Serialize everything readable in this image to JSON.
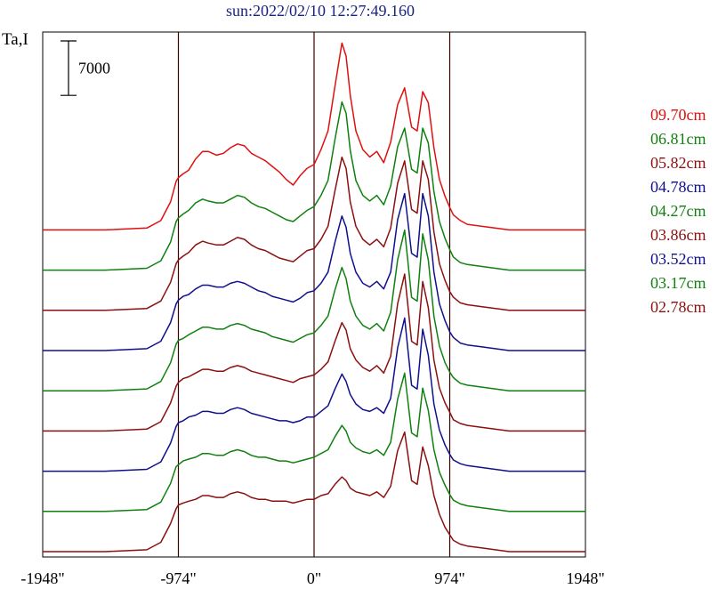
{
  "chart_data": {
    "type": "line",
    "title": "sun:2022/02/10 12:27:49.160",
    "ylabel": "Ta,I",
    "scale_bar_label": "7000",
    "xlim": [
      -1948,
      1948
    ],
    "x_ticks": [
      {
        "value": -1948,
        "label": "-1948\""
      },
      {
        "value": -974,
        "label": "-974\""
      },
      {
        "value": 0,
        "label": "0\""
      },
      {
        "value": 974,
        "label": "974\""
      },
      {
        "value": 1948,
        "label": "1948\""
      }
    ],
    "vertical_lines": [
      -974,
      0,
      974
    ],
    "grid": false,
    "legend_position": "right",
    "profile_x": [
      -1948,
      -1500,
      -1200,
      -1100,
      -1030,
      -990,
      -974,
      -940,
      -900,
      -850,
      -800,
      -760,
      -700,
      -650,
      -600,
      -550,
      -500,
      -450,
      -400,
      -350,
      -300,
      -250,
      -200,
      -150,
      -100,
      -50,
      0,
      50,
      100,
      150,
      200,
      230,
      260,
      300,
      350,
      400,
      450,
      500,
      550,
      600,
      650,
      700,
      740,
      780,
      820,
      860,
      900,
      940,
      974,
      1000,
      1050,
      1100,
      1200,
      1400,
      1948
    ],
    "series": [
      {
        "name": "09.70cm",
        "color": "#e01010",
        "offset": 0,
        "amplitude": 1.0,
        "values": [
          0.0,
          0.0,
          0.01,
          0.05,
          0.15,
          0.26,
          0.28,
          0.3,
          0.32,
          0.38,
          0.42,
          0.42,
          0.4,
          0.41,
          0.44,
          0.46,
          0.45,
          0.41,
          0.39,
          0.37,
          0.34,
          0.31,
          0.27,
          0.24,
          0.29,
          0.33,
          0.35,
          0.43,
          0.53,
          0.77,
          1.0,
          0.93,
          0.72,
          0.53,
          0.43,
          0.39,
          0.42,
          0.36,
          0.47,
          0.67,
          0.76,
          0.55,
          0.53,
          0.74,
          0.68,
          0.44,
          0.27,
          0.18,
          0.12,
          0.08,
          0.05,
          0.03,
          0.02,
          0.0,
          0.0
        ]
      },
      {
        "name": "06.81cm",
        "color": "#108010",
        "offset": 7000,
        "amplitude": 0.92,
        "values": [
          0.0,
          0.0,
          0.01,
          0.05,
          0.15,
          0.26,
          0.28,
          0.3,
          0.32,
          0.36,
          0.38,
          0.37,
          0.36,
          0.36,
          0.38,
          0.4,
          0.39,
          0.36,
          0.34,
          0.33,
          0.31,
          0.29,
          0.27,
          0.26,
          0.29,
          0.32,
          0.34,
          0.4,
          0.48,
          0.7,
          0.9,
          0.84,
          0.64,
          0.48,
          0.4,
          0.37,
          0.4,
          0.35,
          0.45,
          0.66,
          0.76,
          0.54,
          0.52,
          0.76,
          0.68,
          0.42,
          0.26,
          0.17,
          0.11,
          0.07,
          0.04,
          0.03,
          0.02,
          0.0,
          0.0
        ]
      },
      {
        "name": "05.82cm",
        "color": "#8b1010",
        "offset": 14000,
        "amplitude": 0.88,
        "values": [
          0.0,
          0.0,
          0.01,
          0.05,
          0.15,
          0.25,
          0.27,
          0.29,
          0.31,
          0.35,
          0.37,
          0.36,
          0.35,
          0.35,
          0.37,
          0.39,
          0.38,
          0.35,
          0.33,
          0.32,
          0.3,
          0.28,
          0.27,
          0.26,
          0.29,
          0.32,
          0.33,
          0.38,
          0.45,
          0.64,
          0.82,
          0.76,
          0.58,
          0.45,
          0.38,
          0.35,
          0.38,
          0.34,
          0.44,
          0.68,
          0.8,
          0.54,
          0.52,
          0.8,
          0.7,
          0.42,
          0.25,
          0.16,
          0.1,
          0.07,
          0.04,
          0.03,
          0.02,
          0.0,
          0.0
        ]
      },
      {
        "name": "04.78cm",
        "color": "#10108b",
        "offset": 21000,
        "amplitude": 0.86,
        "values": [
          0.0,
          0.0,
          0.01,
          0.05,
          0.15,
          0.25,
          0.27,
          0.29,
          0.3,
          0.33,
          0.35,
          0.35,
          0.34,
          0.34,
          0.36,
          0.37,
          0.36,
          0.34,
          0.32,
          0.31,
          0.29,
          0.28,
          0.27,
          0.26,
          0.28,
          0.31,
          0.32,
          0.36,
          0.42,
          0.58,
          0.72,
          0.66,
          0.52,
          0.42,
          0.36,
          0.34,
          0.37,
          0.33,
          0.42,
          0.7,
          0.84,
          0.52,
          0.5,
          0.84,
          0.72,
          0.42,
          0.25,
          0.16,
          0.1,
          0.07,
          0.04,
          0.03,
          0.02,
          0.0,
          0.0
        ]
      },
      {
        "name": "04.27cm",
        "color": "#108010",
        "offset": 28000,
        "amplitude": 0.84,
        "values": [
          0.0,
          0.0,
          0.01,
          0.05,
          0.15,
          0.25,
          0.27,
          0.28,
          0.3,
          0.32,
          0.34,
          0.34,
          0.33,
          0.33,
          0.35,
          0.36,
          0.35,
          0.33,
          0.32,
          0.31,
          0.29,
          0.28,
          0.27,
          0.26,
          0.28,
          0.3,
          0.31,
          0.35,
          0.4,
          0.54,
          0.66,
          0.6,
          0.48,
          0.4,
          0.35,
          0.33,
          0.36,
          0.32,
          0.42,
          0.7,
          0.86,
          0.5,
          0.48,
          0.84,
          0.7,
          0.4,
          0.24,
          0.15,
          0.1,
          0.07,
          0.04,
          0.03,
          0.02,
          0.0,
          0.0
        ]
      },
      {
        "name": "03.86cm",
        "color": "#8b1010",
        "offset": 35000,
        "amplitude": 0.82,
        "values": [
          0.0,
          0.0,
          0.01,
          0.05,
          0.15,
          0.24,
          0.26,
          0.28,
          0.29,
          0.31,
          0.33,
          0.33,
          0.32,
          0.32,
          0.34,
          0.35,
          0.34,
          0.32,
          0.31,
          0.3,
          0.29,
          0.28,
          0.27,
          0.26,
          0.28,
          0.29,
          0.3,
          0.33,
          0.37,
          0.48,
          0.58,
          0.54,
          0.44,
          0.38,
          0.34,
          0.32,
          0.35,
          0.31,
          0.4,
          0.68,
          0.84,
          0.48,
          0.46,
          0.8,
          0.66,
          0.38,
          0.23,
          0.15,
          0.1,
          0.06,
          0.04,
          0.03,
          0.02,
          0.0,
          0.0
        ]
      },
      {
        "name": "03.52cm",
        "color": "#10108b",
        "offset": 42000,
        "amplitude": 0.8,
        "values": [
          0.0,
          0.0,
          0.01,
          0.05,
          0.15,
          0.24,
          0.26,
          0.27,
          0.29,
          0.3,
          0.32,
          0.32,
          0.31,
          0.31,
          0.33,
          0.34,
          0.33,
          0.31,
          0.3,
          0.29,
          0.28,
          0.27,
          0.27,
          0.26,
          0.27,
          0.29,
          0.29,
          0.32,
          0.35,
          0.44,
          0.52,
          0.48,
          0.41,
          0.36,
          0.33,
          0.32,
          0.34,
          0.31,
          0.39,
          0.66,
          0.82,
          0.46,
          0.44,
          0.76,
          0.62,
          0.36,
          0.22,
          0.14,
          0.09,
          0.06,
          0.04,
          0.03,
          0.02,
          0.0,
          0.0
        ]
      },
      {
        "name": "03.17cm",
        "color": "#108010",
        "offset": 49000,
        "amplitude": 0.78,
        "values": [
          0.0,
          0.0,
          0.01,
          0.05,
          0.15,
          0.24,
          0.25,
          0.27,
          0.28,
          0.29,
          0.31,
          0.31,
          0.3,
          0.3,
          0.32,
          0.33,
          0.32,
          0.3,
          0.29,
          0.29,
          0.28,
          0.27,
          0.27,
          0.26,
          0.27,
          0.28,
          0.29,
          0.31,
          0.33,
          0.4,
          0.46,
          0.43,
          0.37,
          0.34,
          0.32,
          0.31,
          0.33,
          0.3,
          0.37,
          0.6,
          0.74,
          0.42,
          0.4,
          0.66,
          0.54,
          0.33,
          0.21,
          0.14,
          0.09,
          0.06,
          0.04,
          0.03,
          0.02,
          0.0,
          0.0
        ]
      },
      {
        "name": "02.78cm",
        "color": "#8b1010",
        "offset": 56000,
        "amplitude": 0.76,
        "values": [
          0.0,
          0.0,
          0.01,
          0.05,
          0.15,
          0.23,
          0.25,
          0.26,
          0.27,
          0.28,
          0.3,
          0.3,
          0.29,
          0.29,
          0.31,
          0.32,
          0.31,
          0.29,
          0.28,
          0.28,
          0.27,
          0.27,
          0.27,
          0.26,
          0.27,
          0.28,
          0.28,
          0.3,
          0.31,
          0.36,
          0.4,
          0.38,
          0.34,
          0.32,
          0.31,
          0.3,
          0.32,
          0.29,
          0.35,
          0.54,
          0.64,
          0.38,
          0.36,
          0.56,
          0.46,
          0.3,
          0.2,
          0.13,
          0.09,
          0.06,
          0.04,
          0.03,
          0.02,
          0.0,
          0.0
        ]
      }
    ]
  }
}
